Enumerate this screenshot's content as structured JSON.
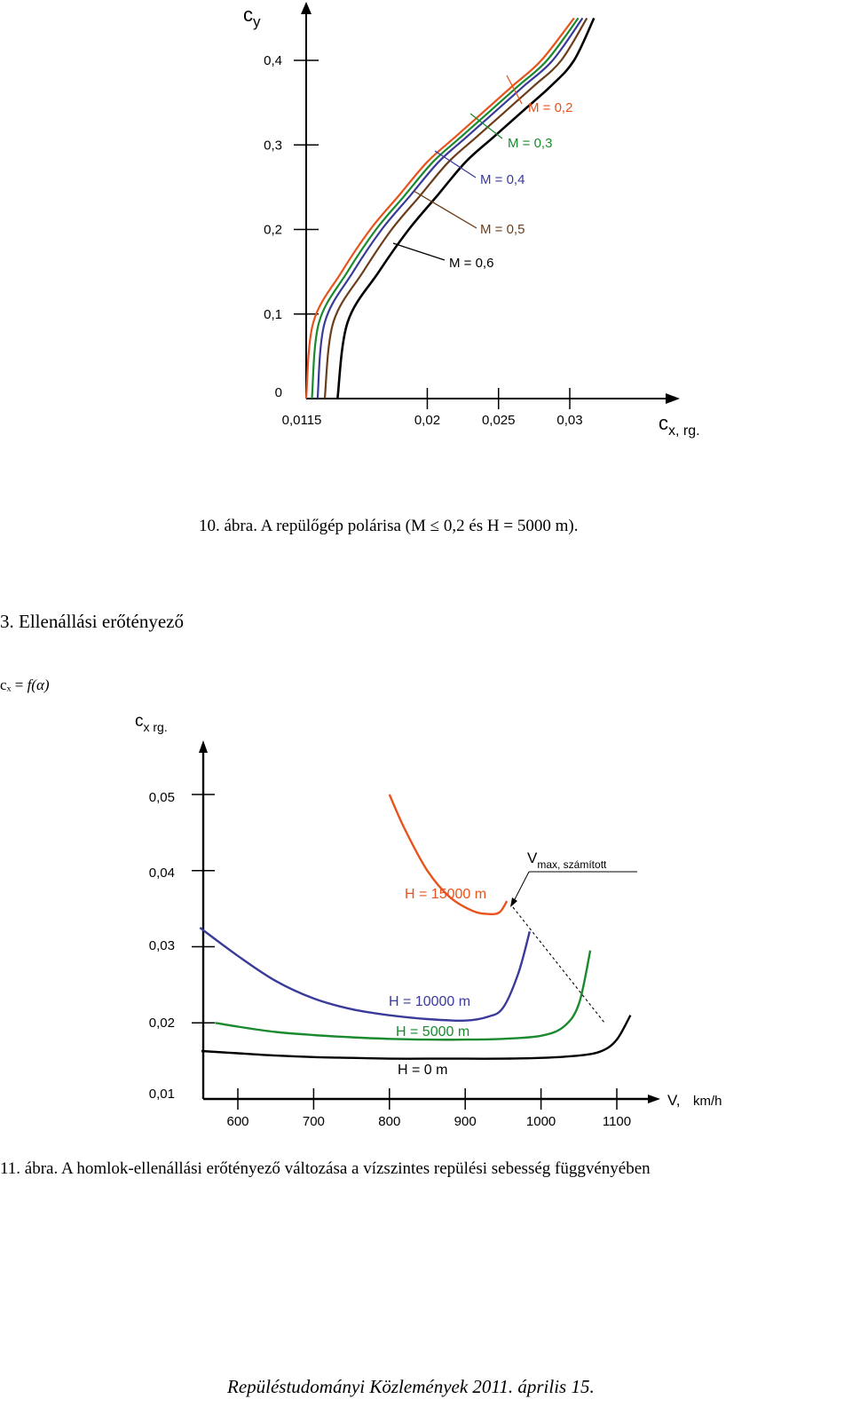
{
  "chart_data": [
    {
      "type": "line",
      "ylabel_main": "c",
      "ylabel_sub": "y",
      "xlabel_main": "c",
      "xlabel_sub": "x, rg.",
      "x_ticks": [
        "0,0115",
        "0,02",
        "0,025",
        "0,03"
      ],
      "y_ticks": [
        "0",
        "0,1",
        "0,2",
        "0,3",
        "0,4"
      ],
      "xlim": [
        0.0115,
        0.035
      ],
      "ylim": [
        0,
        0.45
      ],
      "series": [
        {
          "name": "M = 0,2",
          "color": "#e8521c",
          "x": [
            0.0115,
            0.012,
            0.014,
            0.016,
            0.018,
            0.02,
            0.022,
            0.024,
            0.026,
            0.028,
            0.0303
          ],
          "y": [
            0.0,
            0.09,
            0.15,
            0.2,
            0.24,
            0.28,
            0.31,
            0.34,
            0.37,
            0.4,
            0.45
          ]
        },
        {
          "name": "M = 0,3",
          "color": "#1a8a2e",
          "x": [
            0.0119,
            0.0124,
            0.0144,
            0.0164,
            0.0184,
            0.0204,
            0.0224,
            0.0244,
            0.0264,
            0.0284,
            0.0306
          ],
          "y": [
            0.0,
            0.09,
            0.15,
            0.2,
            0.24,
            0.28,
            0.31,
            0.34,
            0.37,
            0.4,
            0.45
          ]
        },
        {
          "name": "M = 0,4",
          "color": "#3a3a9a",
          "x": [
            0.0123,
            0.0128,
            0.0148,
            0.0168,
            0.0188,
            0.0208,
            0.0228,
            0.0248,
            0.0268,
            0.0288,
            0.0309
          ],
          "y": [
            0.0,
            0.09,
            0.15,
            0.2,
            0.24,
            0.28,
            0.31,
            0.34,
            0.37,
            0.4,
            0.45
          ]
        },
        {
          "name": "M = 0,5",
          "color": "#6b3d1a",
          "x": [
            0.0128,
            0.0134,
            0.0155,
            0.0175,
            0.0195,
            0.0215,
            0.0235,
            0.0255,
            0.0275,
            0.0294,
            0.0312
          ],
          "y": [
            0.0,
            0.09,
            0.15,
            0.2,
            0.24,
            0.28,
            0.31,
            0.34,
            0.37,
            0.4,
            0.45
          ]
        },
        {
          "name": "M = 0,6",
          "color": "#000000",
          "x": [
            0.0137,
            0.0144,
            0.0166,
            0.0187,
            0.0207,
            0.0227,
            0.0247,
            0.0267,
            0.0287,
            0.0303,
            0.0317
          ],
          "y": [
            0.0,
            0.09,
            0.15,
            0.2,
            0.24,
            0.28,
            0.31,
            0.34,
            0.37,
            0.4,
            0.45
          ]
        }
      ]
    },
    {
      "type": "line",
      "ylabel_main": "c",
      "ylabel_sub": "x rg.",
      "xlabel_main": "V,",
      "xlabel_unit": "km/h",
      "x_ticks": [
        "600",
        "700",
        "800",
        "900",
        "1000",
        "1100"
      ],
      "y_ticks": [
        "0,01",
        "0,02",
        "0,03",
        "0,04",
        "0,05"
      ],
      "xlim": [
        540,
        1190
      ],
      "ylim": [
        0.01,
        0.06
      ],
      "vmax_label_main": "V",
      "vmax_label_sub": "max, számított",
      "series": [
        {
          "name": "H = 15000 m",
          "color": "#e8521c",
          "x": [
            800,
            820,
            850,
            880,
            910,
            930,
            945,
            955
          ],
          "y": [
            0.05,
            0.0455,
            0.04,
            0.0365,
            0.0347,
            0.0343,
            0.0345,
            0.036
          ]
        },
        {
          "name": "H = 10000 m",
          "color": "#3a3a9a",
          "x": [
            550,
            600,
            650,
            700,
            750,
            800,
            850,
            900,
            930,
            950,
            970,
            985
          ],
          "y": [
            0.0325,
            0.0288,
            0.0255,
            0.0232,
            0.0218,
            0.021,
            0.0205,
            0.0203,
            0.0208,
            0.022,
            0.0265,
            0.032
          ]
        },
        {
          "name": "H = 5000 m",
          "color": "#1a8a2e",
          "x": [
            570,
            600,
            650,
            700,
            750,
            800,
            850,
            900,
            950,
            1000,
            1030,
            1050,
            1065
          ],
          "y": [
            0.02,
            0.0195,
            0.0188,
            0.0184,
            0.0181,
            0.0179,
            0.0178,
            0.0178,
            0.0179,
            0.0183,
            0.0195,
            0.0225,
            0.0295
          ]
        },
        {
          "name": "H = 0 m",
          "color": "#000000",
          "x": [
            552,
            600,
            650,
            700,
            750,
            800,
            850,
            900,
            950,
            1000,
            1050,
            1080,
            1100,
            1118
          ],
          "y": [
            0.0163,
            0.016,
            0.0157,
            0.0155,
            0.0154,
            0.0153,
            0.0153,
            0.0153,
            0.0153,
            0.0154,
            0.0157,
            0.0163,
            0.0178,
            0.021
          ]
        }
      ]
    }
  ],
  "captions": {
    "fig10": "10. ábra. A repülőgép polárisa (M ≤ 0,2 és H = 5000 m).",
    "section": "3. Ellenállási erőtényező",
    "formula_left": "cₓ =",
    "formula_right": "f(α)",
    "fig11": "11. ábra. A homlok-ellenállási erőtényező változása a vízszintes repülési sebesség függvényében",
    "footer": "Repüléstudományi Közlemények 2011. április 15."
  }
}
